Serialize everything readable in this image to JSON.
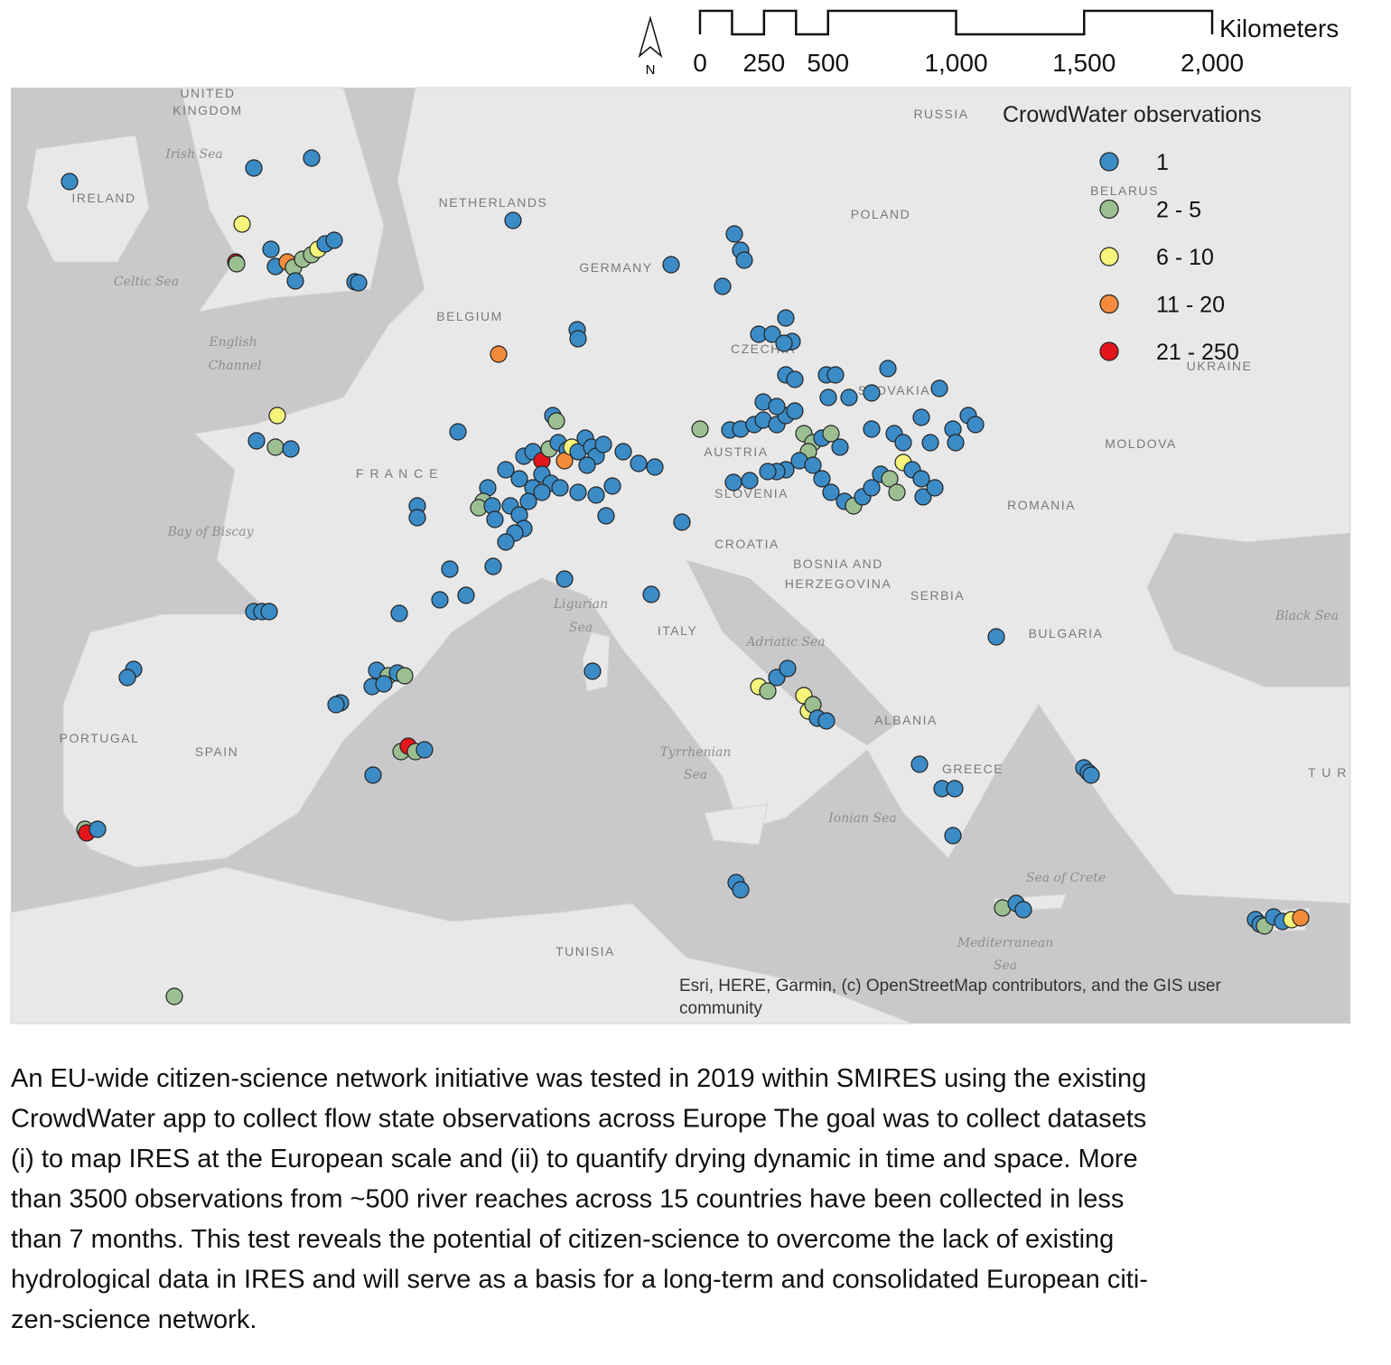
{
  "map": {
    "north_arrow": "N",
    "scale_bar": {
      "unit": "Kilometers",
      "ticks": [
        0,
        250,
        500,
        {
          "value": 1000,
          "label": "1,000"
        },
        {
          "value": 1500,
          "label": "1,500"
        },
        {
          "value": 2000,
          "label": "2,000"
        }
      ]
    },
    "legend": {
      "title": "CrowdWater observations",
      "items": [
        {
          "label": "1",
          "color": "#3b8bc6"
        },
        {
          "label": "2 - 5",
          "color": "#9cbf92"
        },
        {
          "label": "6 - 10",
          "color": "#f6f47a"
        },
        {
          "label": "11 - 20",
          "color": "#f28b3b"
        },
        {
          "label": "21 - 250",
          "color": "#e5161b"
        }
      ]
    },
    "labels": [
      "UNITED",
      "KINGDOM",
      "Irish Sea",
      "IRELAND",
      "NETHERLANDS",
      "RUSSIA",
      "BELARUS",
      "POLAND",
      "GERMANY",
      "Celtic Sea",
      "BELGIUM",
      "English",
      "Channel",
      "CZECHIA",
      "UKRAINE",
      "SLOVAKIA",
      "MOLDOVA",
      "AUSTRIA",
      "F R A N C E",
      "SLOVENIA",
      "ROMANIA",
      "Bay of Biscay",
      "CROATIA",
      "BOSNIA AND",
      "HERZEGOVINA",
      "SERBIA",
      "Ligurian",
      "Sea",
      "ITALY",
      "Black Sea",
      "Adriatic Sea",
      "BULGARIA",
      "ALBANIA",
      "PORTUGAL",
      "SPAIN",
      "Tyrrhenian",
      "Sea",
      "GREECE",
      "T U R",
      "Ionian Sea",
      "Sea of Crete",
      "Mediterranean",
      "Sea",
      "TUNISIA"
    ],
    "attribution": [
      "Esri, HERE, Garmin, (c) OpenStreetMap contributors, and the GIS user",
      "community"
    ]
  },
  "caption": [
    "An EU-wide citizen-science network initiative was tested in 2019 within SMIRES using the existing",
    "CrowdWater app to collect flow state observations across Europe  The goal was to collect datasets",
    "(i) to map IRES at the European scale and (ii) to quantify drying dynamic in time and space. More",
    "than 3500 observations from ~500 river reaches across 15 countries have been collected in less",
    "than 7 months. This test reveals the potential of citizen-science to overcome the lack of existing",
    "hydrological data in IRES and will serve as a basis for a long-term and consolidated European citi-",
    "zen-science network."
  ]
}
